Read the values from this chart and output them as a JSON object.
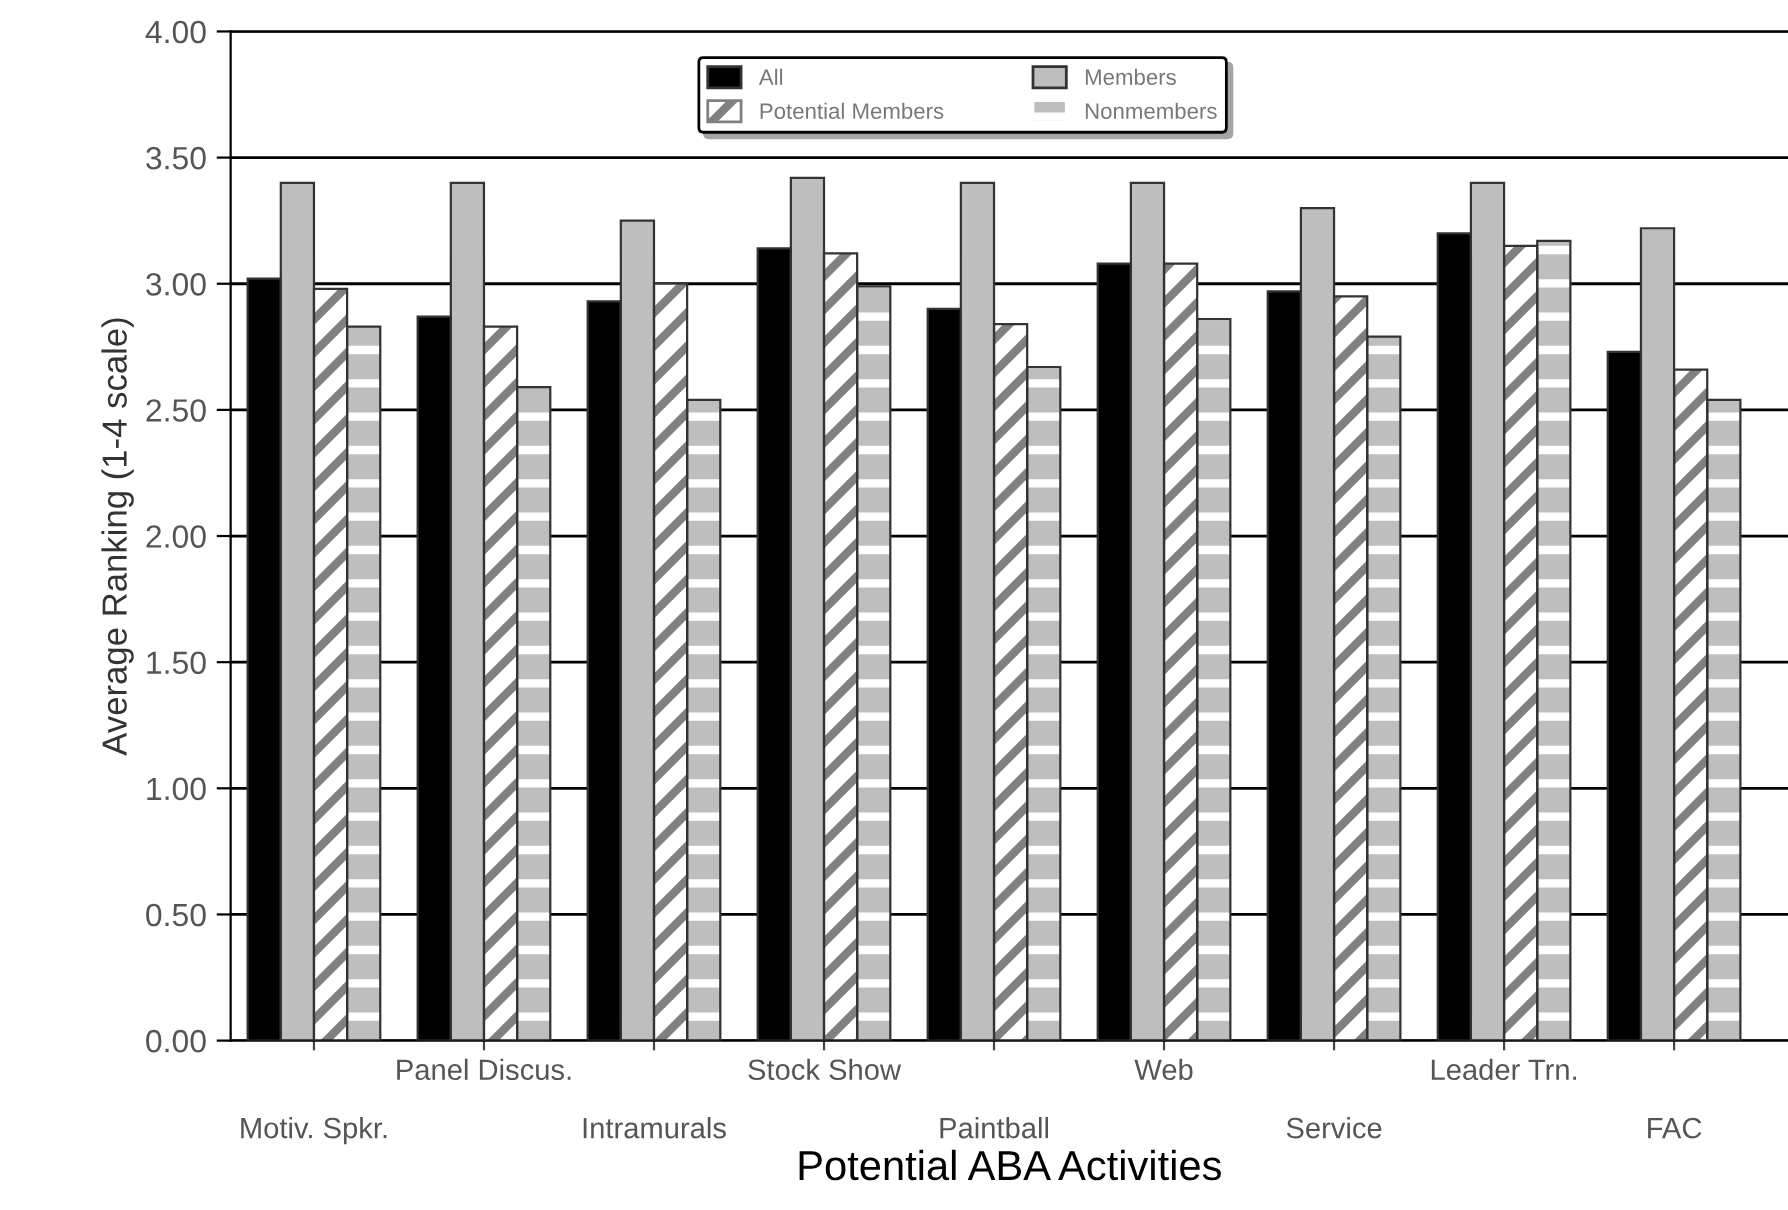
{
  "chart_data": {
    "type": "bar",
    "xlabel": "Potential ABA Activities",
    "ylabel": "Average Ranking (1-4 scale)",
    "categories": [
      "Motiv. Spkr.",
      "Panel Discus.",
      "Intramurals",
      "Stock Show",
      "Paintball",
      "Web",
      "Service",
      "Leader Trn.",
      "FAC"
    ],
    "series": [
      {
        "name": "All",
        "color": "#000000",
        "values": [
          3.02,
          2.87,
          2.93,
          3.14,
          2.9,
          3.08,
          2.97,
          3.2,
          2.73
        ]
      },
      {
        "name": "Members",
        "color": "#bebebe",
        "values": [
          3.4,
          3.4,
          3.25,
          3.42,
          3.4,
          3.4,
          3.3,
          3.4,
          3.22
        ]
      },
      {
        "name": "Potential Members",
        "color": "#808080",
        "values": [
          2.98,
          2.83,
          3.0,
          3.12,
          2.84,
          3.08,
          2.95,
          3.15,
          2.66
        ]
      },
      {
        "name": "Nonmembers",
        "color": "#bebebe",
        "values": [
          2.83,
          2.59,
          2.54,
          2.99,
          2.67,
          2.86,
          2.79,
          3.17,
          2.54
        ]
      }
    ],
    "ylim": [
      0,
      4
    ],
    "yticks": [
      {
        "value": 0,
        "label": "0.00"
      },
      {
        "value": 0.5,
        "label": "0.50"
      },
      {
        "value": 1,
        "label": "1.00"
      },
      {
        "value": 1.5,
        "label": "1.50"
      },
      {
        "value": 2,
        "label": "2.00"
      },
      {
        "value": 2.5,
        "label": "2.50"
      },
      {
        "value": 3,
        "label": "3.00"
      },
      {
        "value": 3.5,
        "label": "3.50"
      },
      {
        "value": 4,
        "label": "4.00"
      }
    ],
    "grid": "y",
    "legend": "top"
  }
}
